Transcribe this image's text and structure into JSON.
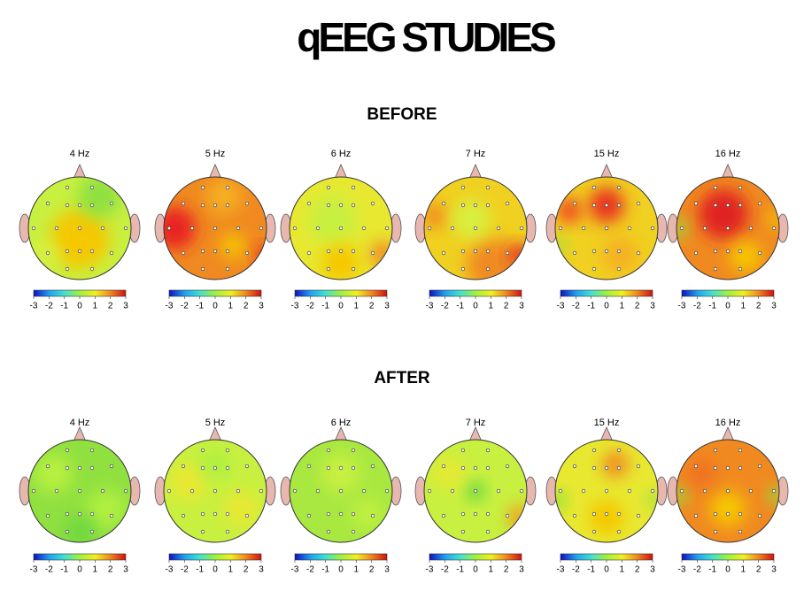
{
  "title": "qEEG STUDIES",
  "colorbar_ticks": [
    -3,
    -2,
    -1,
    0,
    1,
    2,
    3
  ],
  "sections": [
    {
      "label": "BEFORE",
      "maps": [
        {
          "label": "4 Hz"
        },
        {
          "label": "5 Hz"
        },
        {
          "label": "6 Hz"
        },
        {
          "label": "7 Hz"
        },
        {
          "label": "15 Hz"
        },
        {
          "label": "16 Hz"
        }
      ]
    },
    {
      "label": "AFTER",
      "maps": [
        {
          "label": "4 Hz"
        },
        {
          "label": "5 Hz"
        },
        {
          "label": "6 Hz"
        },
        {
          "label": "7 Hz"
        },
        {
          "label": "15 Hz"
        },
        {
          "label": "16 Hz"
        }
      ]
    }
  ]
}
